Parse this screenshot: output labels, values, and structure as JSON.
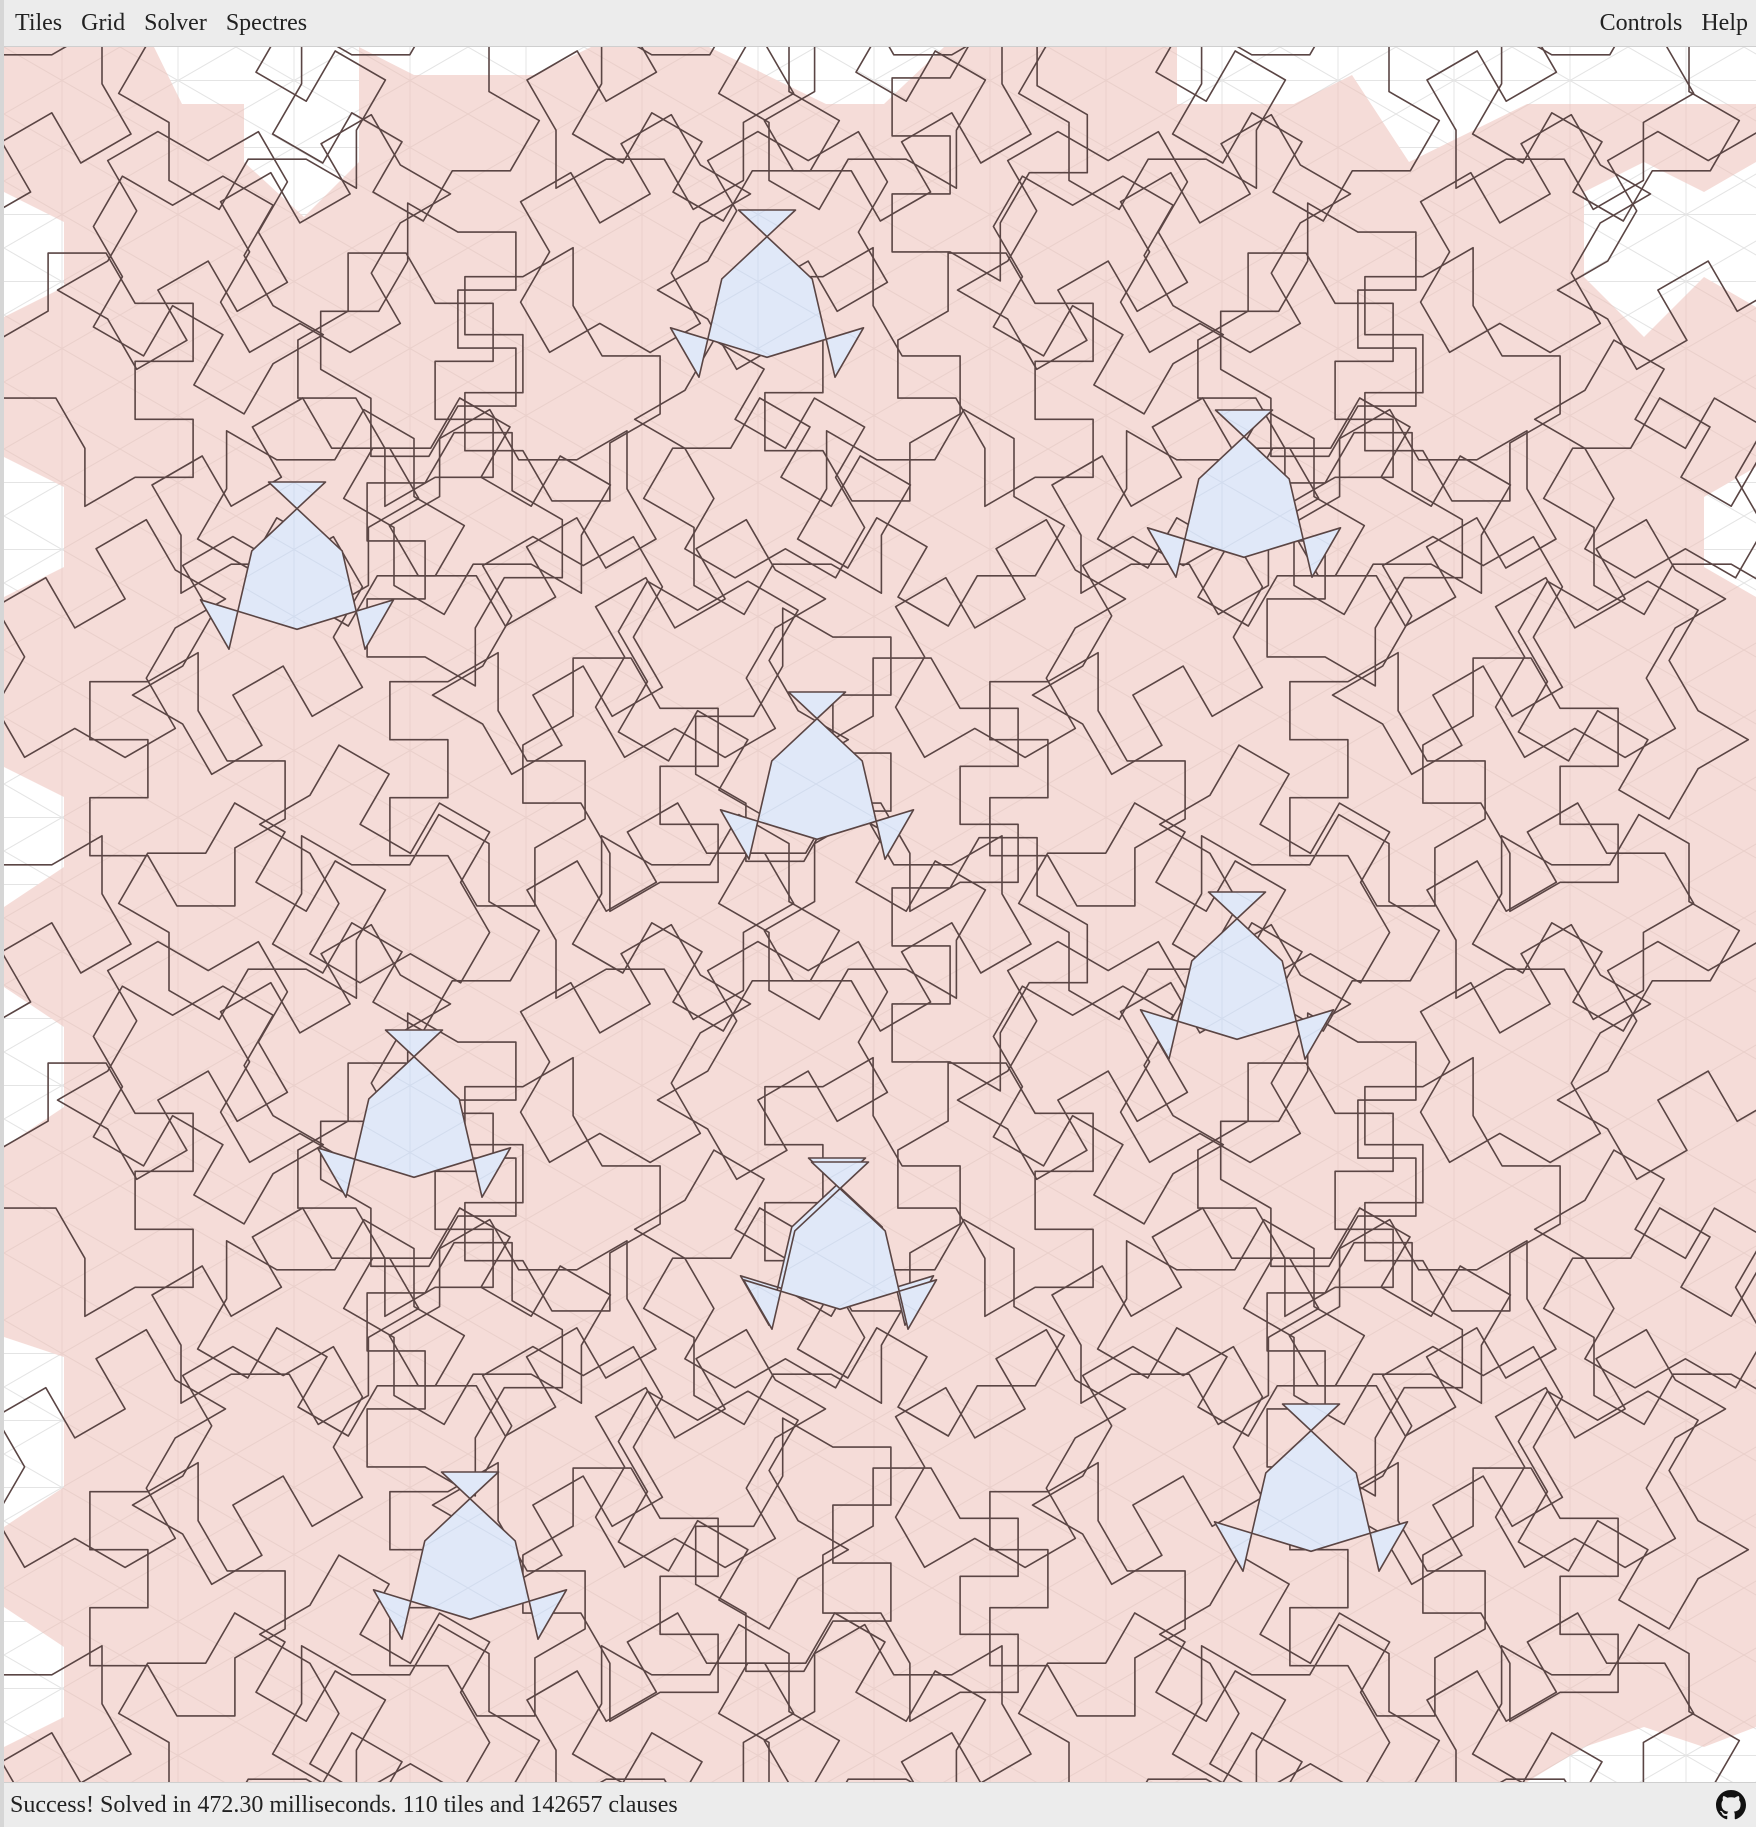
{
  "menubar": {
    "left_items": [
      "Tiles",
      "Grid",
      "Solver",
      "Spectres"
    ],
    "right_items": [
      "Controls",
      "Help"
    ]
  },
  "canvas": {
    "tile_fill": "#f5dcd8",
    "tile_stroke": "#5a4544",
    "highlight_fill": "#e0e8f8",
    "grid_stroke": "#dedede",
    "highlighted_tile_count": 10
  },
  "status": {
    "message": "Success! Solved in 472.30 milliseconds. 110 tiles and 142657 clauses"
  },
  "footer": {
    "github_icon": "github-icon"
  }
}
